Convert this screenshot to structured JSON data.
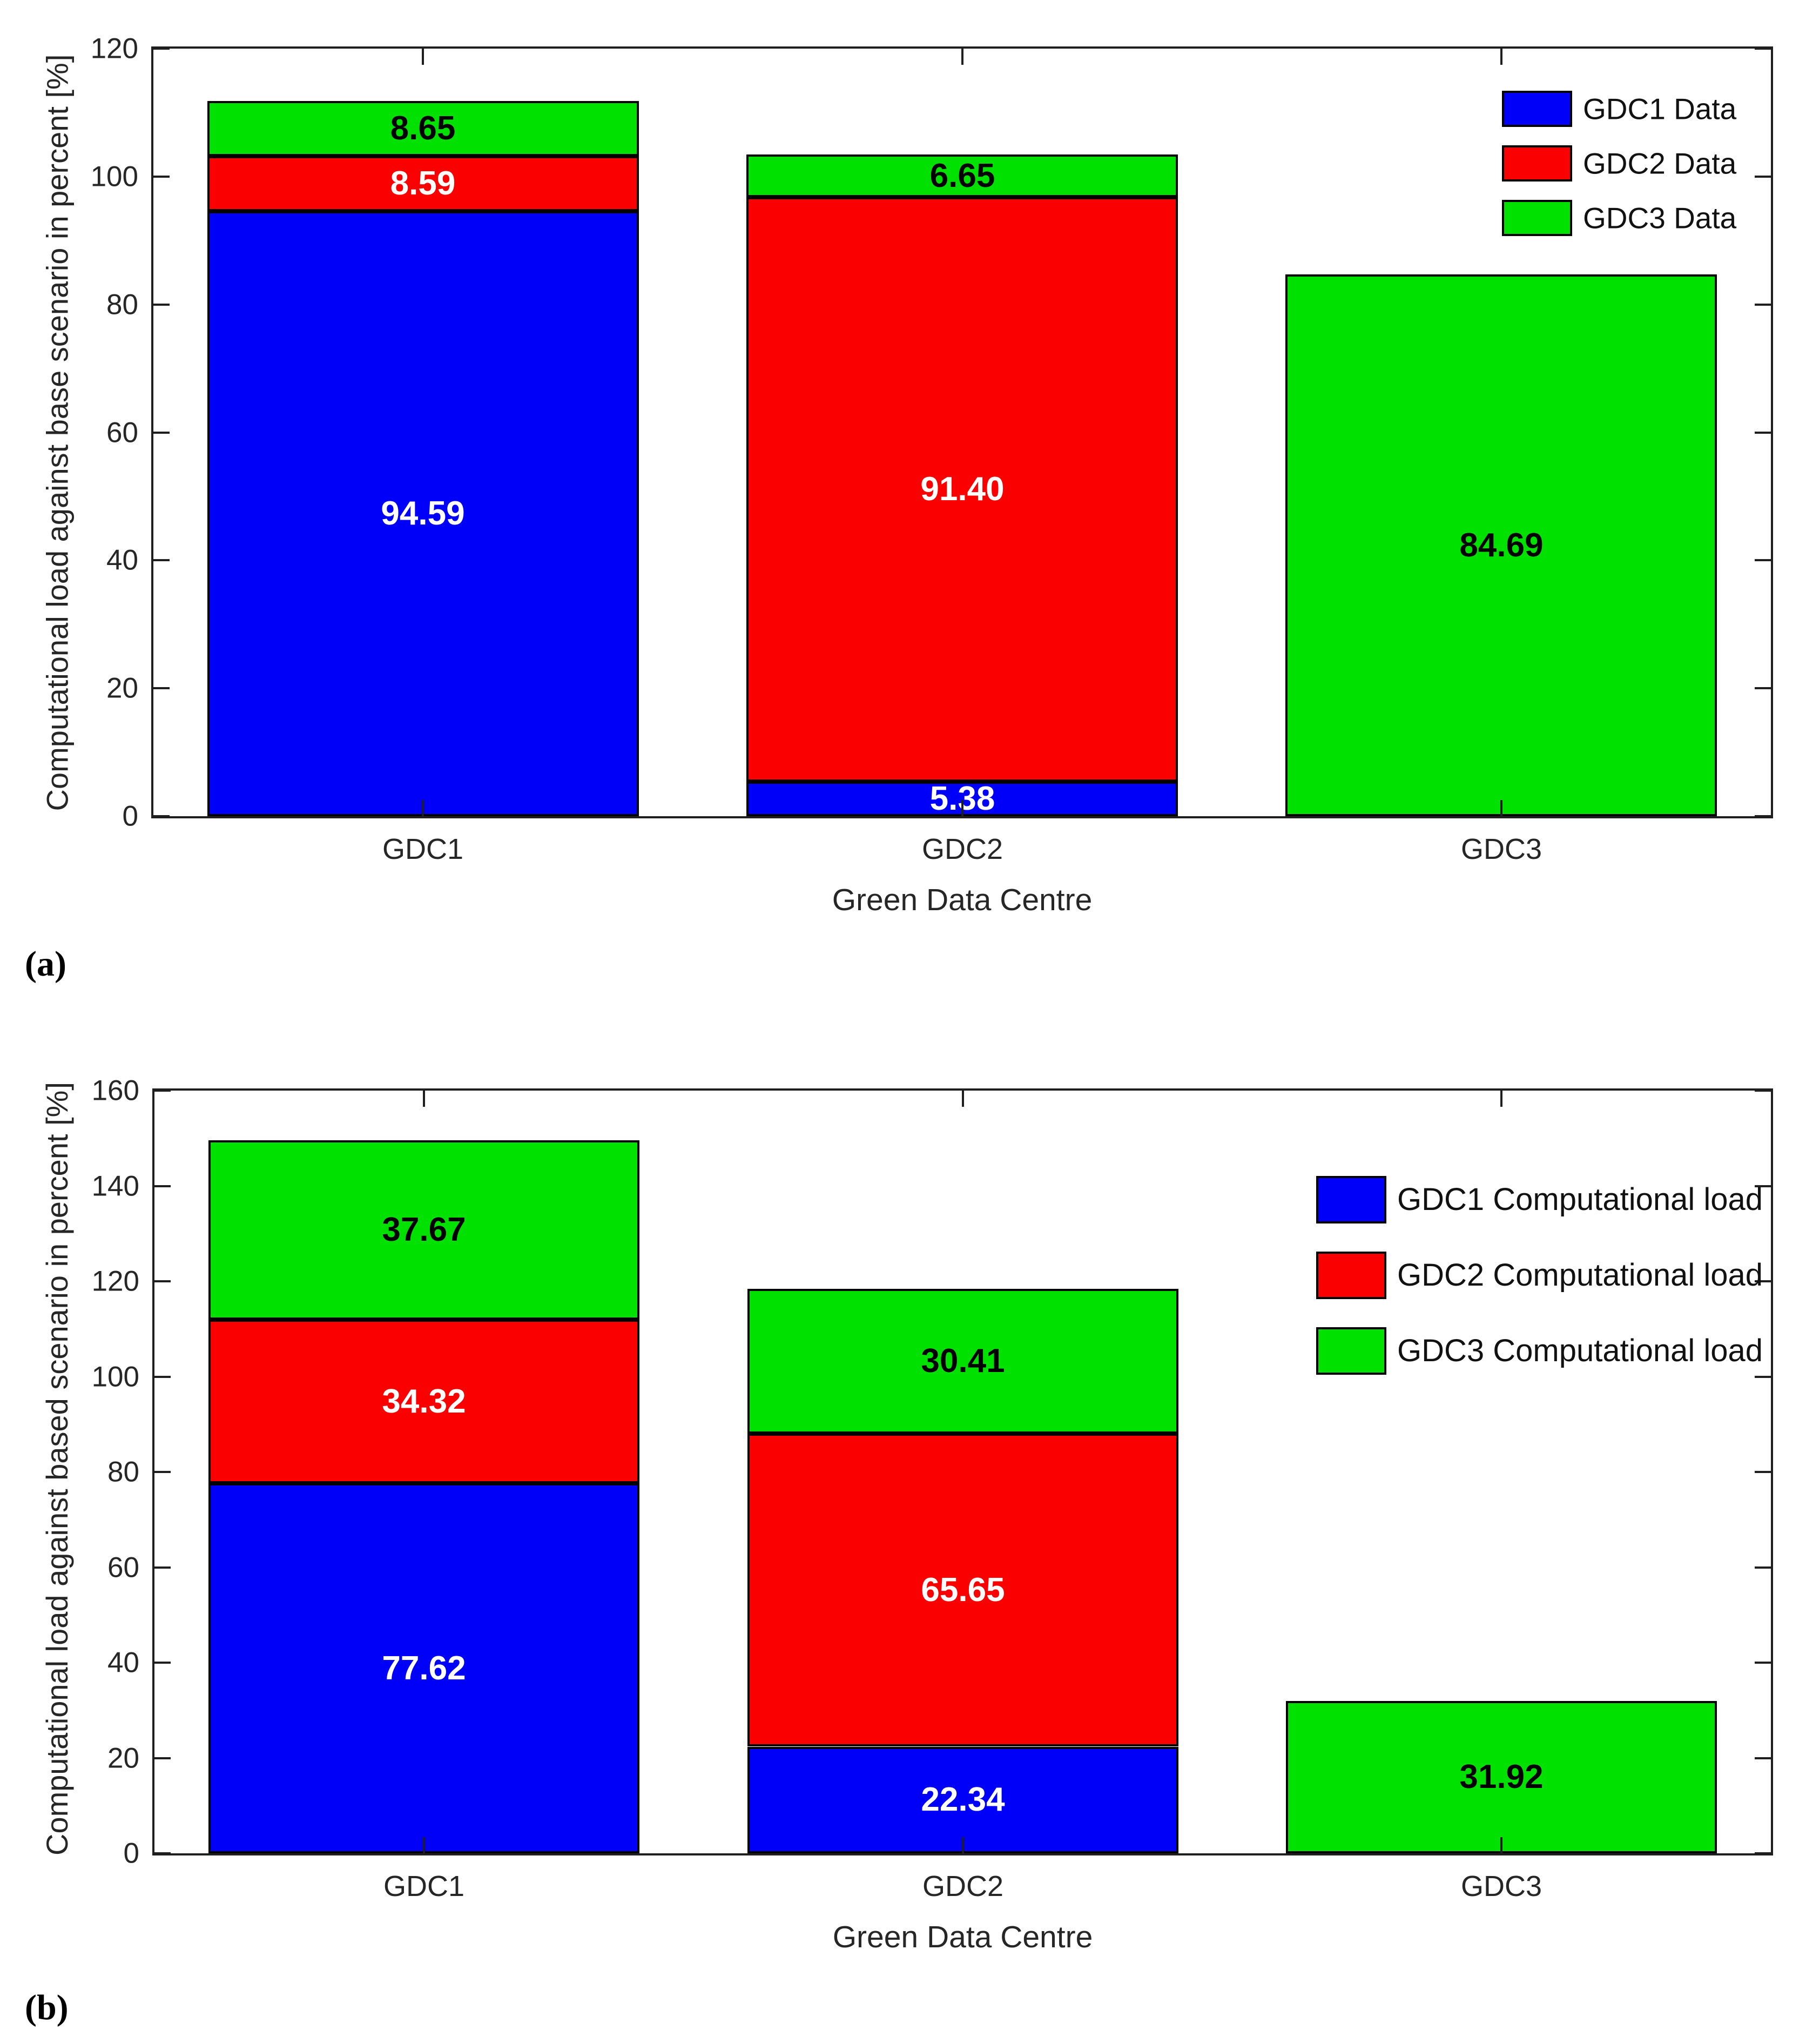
{
  "figure": {
    "background": "#ffffff",
    "axis_color": "#1f1f1f",
    "bar_edge_color": "#000000"
  },
  "chart_data": [
    {
      "type": "bar",
      "stacked": true,
      "panel_label": "(a)",
      "title": "",
      "xlabel": "Green Data Centre",
      "ylabel": "Computational load against base scenario in percent [%]",
      "categories": [
        "GDC1",
        "GDC2",
        "GDC3"
      ],
      "ylim": [
        0,
        120
      ],
      "yticks": [
        0,
        20,
        40,
        60,
        80,
        100,
        120
      ],
      "grid": false,
      "legend_position": "upper-right-inside",
      "bar_width_fraction": 0.8,
      "series": [
        {
          "name": "GDC1 Data",
          "color": "#0000fa",
          "value_label_color": "#ffffff",
          "values": [
            94.59,
            5.38,
            null
          ],
          "value_labels": [
            "94.59",
            "5.38",
            ""
          ]
        },
        {
          "name": "GDC2 Data",
          "color": "#fb0000",
          "value_label_color": "#ffffff",
          "values": [
            8.59,
            91.4,
            null
          ],
          "value_labels": [
            "8.59",
            "91.40",
            ""
          ]
        },
        {
          "name": "GDC3 Data",
          "color": "#00e100",
          "value_label_color": "#000000",
          "values": [
            8.65,
            6.65,
            84.69
          ],
          "value_labels": [
            "8.65",
            "6.65",
            "84.69"
          ]
        }
      ]
    },
    {
      "type": "bar",
      "stacked": true,
      "panel_label": "(b)",
      "title": "",
      "xlabel": "Green Data Centre",
      "ylabel": "Computational load against based scenario in percent [%]",
      "categories": [
        "GDC1",
        "GDC2",
        "GDC3"
      ],
      "ylim": [
        0,
        160
      ],
      "yticks": [
        0,
        20,
        40,
        60,
        80,
        100,
        120,
        140,
        160
      ],
      "grid": false,
      "legend_position": "upper-right-inside",
      "bar_width_fraction": 0.8,
      "series": [
        {
          "name": "GDC1 Computational load",
          "color": "#0000fa",
          "value_label_color": "#ffffff",
          "values": [
            77.62,
            22.34,
            null
          ],
          "value_labels": [
            "77.62",
            "22.34",
            ""
          ]
        },
        {
          "name": "GDC2 Computational load",
          "color": "#fb0000",
          "value_label_color": "#ffffff",
          "values": [
            34.32,
            65.65,
            null
          ],
          "value_labels": [
            "34.32",
            "65.65",
            ""
          ]
        },
        {
          "name": "GDC3 Computational load",
          "color": "#00e100",
          "value_label_color": "#000000",
          "values": [
            37.67,
            30.41,
            31.92
          ],
          "value_labels": [
            "37.67",
            "30.41",
            "31.92"
          ]
        }
      ]
    }
  ]
}
